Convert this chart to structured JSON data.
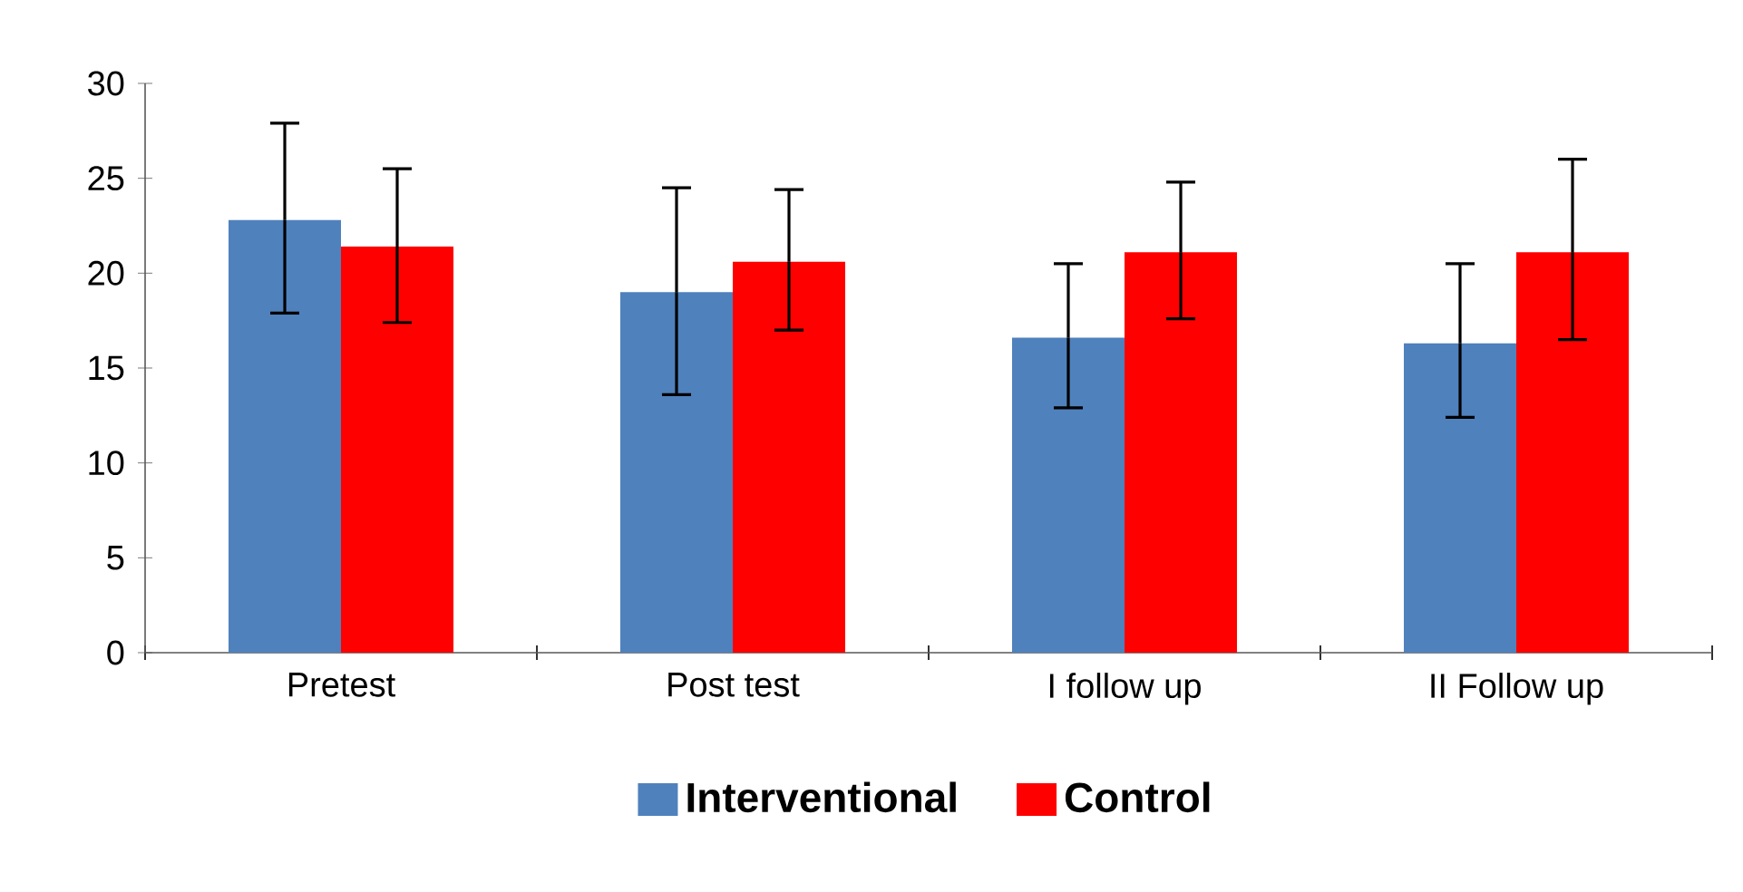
{
  "chart_data": {
    "type": "bar",
    "categories": [
      "Pretest",
      "Post test",
      "I follow up",
      "II Follow up"
    ],
    "series": [
      {
        "name": "Interventional",
        "color": "#4f81bd",
        "values": [
          22.8,
          19.0,
          16.6,
          16.3
        ],
        "errors": [
          [
            17.9,
            27.9
          ],
          [
            13.6,
            24.5
          ],
          [
            12.9,
            20.5
          ],
          [
            12.4,
            20.5
          ]
        ]
      },
      {
        "name": "Control",
        "color": "#ff0000",
        "values": [
          21.4,
          20.6,
          21.1,
          21.1
        ],
        "errors": [
          [
            17.4,
            25.5
          ],
          [
            17.0,
            24.4
          ],
          [
            17.6,
            24.8
          ],
          [
            16.5,
            26.0
          ]
        ]
      }
    ],
    "ylim": [
      0,
      30
    ],
    "yticks": [
      0,
      5,
      10,
      15,
      20,
      25,
      30
    ],
    "grid": false,
    "legend": "bottom"
  }
}
